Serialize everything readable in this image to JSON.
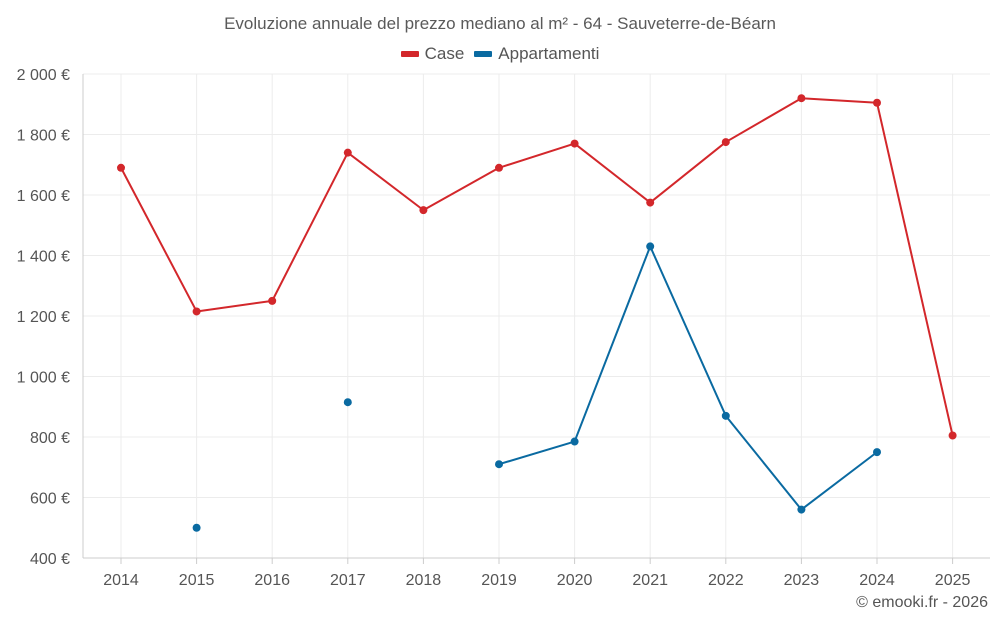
{
  "chart_data": {
    "type": "line",
    "title": "Evoluzione annuale del prezzo mediano al m² - 64 - Sauveterre-de-Béarn",
    "xlabel": "",
    "ylabel": "",
    "categories": [
      "2014",
      "2015",
      "2016",
      "2017",
      "2018",
      "2019",
      "2020",
      "2021",
      "2022",
      "2023",
      "2024",
      "2025"
    ],
    "ylim": [
      400,
      2000
    ],
    "y_ticks": [
      400,
      600,
      800,
      1000,
      1200,
      1400,
      1600,
      1800,
      2000
    ],
    "y_tick_labels": [
      "400 €",
      "600 €",
      "800 €",
      "1 000 €",
      "1 200 €",
      "1 400 €",
      "1 600 €",
      "1 800 €",
      "2 000 €"
    ],
    "grid": true,
    "legend_position": "top-center",
    "series": [
      {
        "name": "Case",
        "color": "#d3272b",
        "values": [
          1690,
          1215,
          1250,
          1740,
          1550,
          1690,
          1770,
          1575,
          1775,
          1920,
          1905,
          805
        ]
      },
      {
        "name": "Appartamenti",
        "color": "#0a6aa1",
        "values": [
          null,
          500,
          null,
          915,
          null,
          710,
          785,
          1430,
          870,
          560,
          750,
          null
        ]
      }
    ]
  },
  "credit": "© emooki.fr - 2026"
}
